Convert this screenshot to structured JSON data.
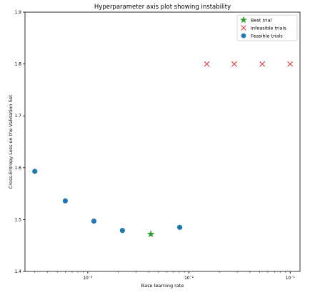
{
  "chart_data": {
    "type": "scatter",
    "title": "Hyperparameter axis plot showing instability",
    "xlabel": "Base learning rate",
    "ylabel": "Cross-Entropy Loss on the Validation Set",
    "xscale": "log",
    "xlim": [
      0.00024,
      0.125
    ],
    "ylim": [
      1.4,
      1.9
    ],
    "yticks": [
      1.4,
      1.5,
      1.6,
      1.7,
      1.8,
      1.9
    ],
    "ytick_labels": [
      "1.4",
      "1.5",
      "1.6",
      "1.7",
      "1.8",
      "1.9"
    ],
    "xticks": [
      0.001,
      0.01,
      0.1
    ],
    "xtick_labels": [
      "10⁻³",
      "10⁻²",
      "10⁻¹"
    ],
    "grid": false,
    "legend_position": "top-right",
    "series": [
      {
        "name": "Best trial",
        "marker": "star",
        "color": "#2ca02c",
        "points": [
          [
            0.0042,
            1.472
          ]
        ]
      },
      {
        "name": "Infeasible trials",
        "marker": "x",
        "color": "#d62728",
        "points": [
          [
            0.015,
            1.8
          ],
          [
            0.028,
            1.8
          ],
          [
            0.053,
            1.8
          ],
          [
            0.1,
            1.8
          ]
        ]
      },
      {
        "name": "Feasible trials",
        "marker": "circle",
        "color": "#1f77b4",
        "points": [
          [
            0.0003,
            1.593
          ],
          [
            0.0006,
            1.536
          ],
          [
            0.00115,
            1.497
          ],
          [
            0.0022,
            1.479
          ],
          [
            0.0081,
            1.485
          ]
        ]
      }
    ]
  }
}
